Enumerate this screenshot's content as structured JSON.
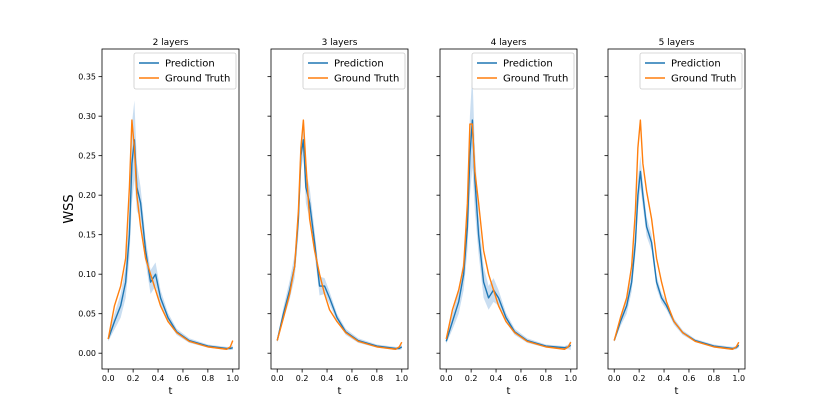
{
  "figure": {
    "ylabel": "WSS"
  },
  "colors": {
    "prediction": "#1f77b4",
    "ground_truth": "#ff7f0e",
    "band": "#a6c8e8"
  },
  "chart_data": [
    {
      "type": "line",
      "title": "2 layers",
      "xlabel": "t",
      "ylabel": "WSS",
      "xlim": [
        -0.05,
        1.05
      ],
      "ylim": [
        -0.02,
        0.385
      ],
      "xticks": [
        "0.0",
        "0.2",
        "0.4",
        "0.6",
        "0.8",
        "1.0"
      ],
      "yticks": [
        "0.00",
        "0.05",
        "0.10",
        "0.15",
        "0.20",
        "0.25",
        "0.30",
        "0.35"
      ],
      "legend": [
        "Prediction",
        "Ground Truth"
      ],
      "x": [
        0.0,
        0.05,
        0.1,
        0.14,
        0.17,
        0.19,
        0.21,
        0.23,
        0.26,
        0.3,
        0.34,
        0.38,
        0.42,
        0.48,
        0.55,
        0.65,
        0.8,
        0.95,
        0.98,
        1.0
      ],
      "series": [
        {
          "name": "Prediction",
          "values": [
            0.018,
            0.04,
            0.06,
            0.09,
            0.15,
            0.24,
            0.27,
            0.21,
            0.19,
            0.13,
            0.09,
            0.1,
            0.07,
            0.045,
            0.027,
            0.016,
            0.009,
            0.006,
            0.006,
            0.007
          ]
        },
        {
          "name": "Ground Truth",
          "values": [
            0.018,
            0.06,
            0.085,
            0.12,
            0.21,
            0.295,
            0.26,
            0.2,
            0.16,
            0.12,
            0.1,
            0.08,
            0.06,
            0.04,
            0.026,
            0.015,
            0.008,
            0.005,
            0.008,
            0.016
          ]
        }
      ],
      "band_width": [
        0.003,
        0.01,
        0.015,
        0.02,
        0.03,
        0.05,
        0.05,
        0.03,
        0.02,
        0.015,
        0.015,
        0.015,
        0.01,
        0.006,
        0.004,
        0.003,
        0.002,
        0.002,
        0.002,
        0.003
      ]
    },
    {
      "type": "line",
      "title": "3 layers",
      "xlabel": "t",
      "ylabel": "",
      "xlim": [
        -0.05,
        1.05
      ],
      "ylim": [
        -0.02,
        0.385
      ],
      "xticks": [
        "0.0",
        "0.2",
        "0.4",
        "0.6",
        "0.8",
        "1.0"
      ],
      "yticks": [],
      "legend": [
        "Prediction",
        "Ground Truth"
      ],
      "x": [
        0.0,
        0.05,
        0.1,
        0.14,
        0.17,
        0.19,
        0.21,
        0.23,
        0.26,
        0.3,
        0.34,
        0.38,
        0.42,
        0.48,
        0.55,
        0.65,
        0.8,
        0.95,
        0.98,
        1.0
      ],
      "series": [
        {
          "name": "Prediction",
          "values": [
            0.016,
            0.05,
            0.08,
            0.11,
            0.17,
            0.25,
            0.27,
            0.21,
            0.19,
            0.14,
            0.085,
            0.085,
            0.07,
            0.045,
            0.027,
            0.016,
            0.009,
            0.006,
            0.006,
            0.008
          ]
        },
        {
          "name": "Ground Truth",
          "values": [
            0.016,
            0.045,
            0.075,
            0.11,
            0.18,
            0.26,
            0.295,
            0.24,
            0.17,
            0.13,
            0.1,
            0.075,
            0.055,
            0.04,
            0.026,
            0.015,
            0.008,
            0.005,
            0.008,
            0.014
          ]
        }
      ],
      "band_width": [
        0.003,
        0.008,
        0.012,
        0.015,
        0.02,
        0.02,
        0.02,
        0.02,
        0.02,
        0.015,
        0.012,
        0.01,
        0.008,
        0.005,
        0.004,
        0.003,
        0.002,
        0.002,
        0.002,
        0.003
      ]
    },
    {
      "type": "line",
      "title": "4 layers",
      "xlabel": "t",
      "ylabel": "",
      "xlim": [
        -0.05,
        1.05
      ],
      "ylim": [
        -0.02,
        0.385
      ],
      "xticks": [
        "0.0",
        "0.2",
        "0.4",
        "0.6",
        "0.8",
        "1.0"
      ],
      "yticks": [],
      "legend": [
        "Prediction",
        "Ground Truth"
      ],
      "x": [
        0.0,
        0.05,
        0.1,
        0.14,
        0.17,
        0.19,
        0.21,
        0.23,
        0.26,
        0.3,
        0.34,
        0.38,
        0.42,
        0.48,
        0.55,
        0.65,
        0.8,
        0.95,
        0.98,
        1.0
      ],
      "series": [
        {
          "name": "Prediction",
          "values": [
            0.015,
            0.04,
            0.065,
            0.1,
            0.16,
            0.25,
            0.295,
            0.22,
            0.15,
            0.09,
            0.07,
            0.08,
            0.07,
            0.045,
            0.027,
            0.016,
            0.009,
            0.007,
            0.008,
            0.01
          ]
        },
        {
          "name": "Ground Truth",
          "values": [
            0.018,
            0.055,
            0.08,
            0.11,
            0.19,
            0.29,
            0.29,
            0.23,
            0.19,
            0.13,
            0.1,
            0.08,
            0.06,
            0.04,
            0.026,
            0.015,
            0.008,
            0.005,
            0.008,
            0.014
          ]
        }
      ],
      "band_width": [
        0.003,
        0.01,
        0.015,
        0.02,
        0.03,
        0.05,
        0.06,
        0.04,
        0.025,
        0.02,
        0.015,
        0.015,
        0.01,
        0.006,
        0.004,
        0.003,
        0.002,
        0.002,
        0.003,
        0.006
      ]
    },
    {
      "type": "line",
      "title": "5 layers",
      "xlabel": "t",
      "ylabel": "",
      "xlim": [
        -0.05,
        1.05
      ],
      "ylim": [
        -0.02,
        0.385
      ],
      "xticks": [
        "0.0",
        "0.2",
        "0.4",
        "0.6",
        "0.8",
        "1.0"
      ],
      "yticks": [],
      "legend": [
        "Prediction",
        "Ground Truth"
      ],
      "x": [
        0.0,
        0.05,
        0.1,
        0.14,
        0.17,
        0.19,
        0.21,
        0.23,
        0.26,
        0.3,
        0.34,
        0.38,
        0.42,
        0.48,
        0.55,
        0.65,
        0.8,
        0.95,
        0.98,
        1.0
      ],
      "series": [
        {
          "name": "Prediction",
          "values": [
            0.016,
            0.04,
            0.06,
            0.09,
            0.14,
            0.2,
            0.23,
            0.2,
            0.16,
            0.14,
            0.09,
            0.07,
            0.06,
            0.04,
            0.026,
            0.016,
            0.009,
            0.006,
            0.007,
            0.01
          ]
        },
        {
          "name": "Ground Truth",
          "values": [
            0.016,
            0.045,
            0.07,
            0.11,
            0.18,
            0.26,
            0.295,
            0.24,
            0.205,
            0.17,
            0.12,
            0.09,
            0.065,
            0.04,
            0.026,
            0.015,
            0.008,
            0.005,
            0.008,
            0.014
          ]
        }
      ],
      "band_width": [
        0.002,
        0.006,
        0.01,
        0.012,
        0.015,
        0.02,
        0.02,
        0.015,
        0.012,
        0.01,
        0.008,
        0.006,
        0.005,
        0.004,
        0.003,
        0.002,
        0.002,
        0.002,
        0.002,
        0.003
      ]
    }
  ]
}
